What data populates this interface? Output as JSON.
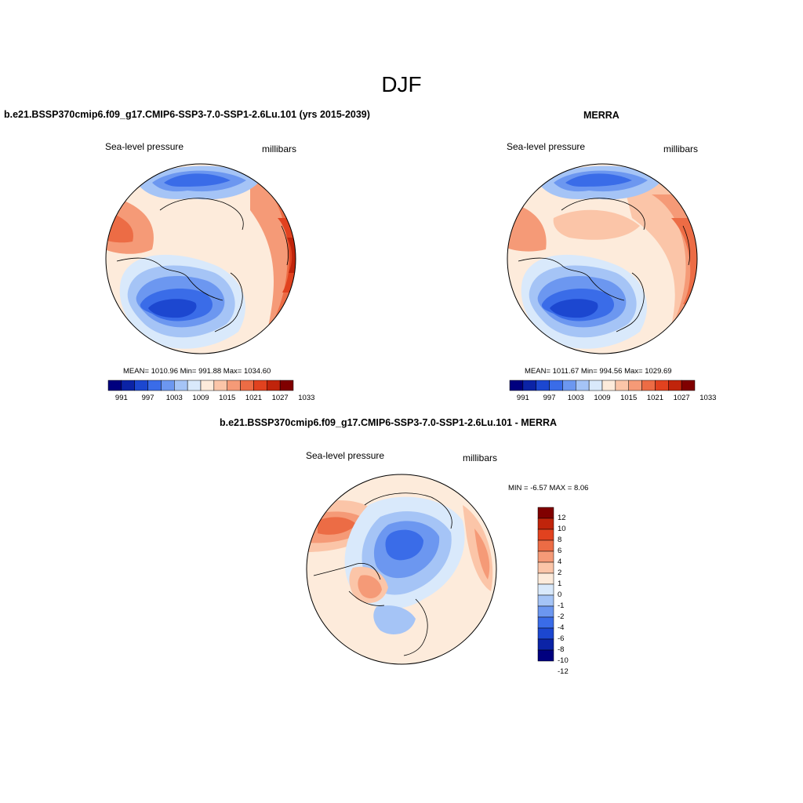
{
  "page": {
    "title": "DJF"
  },
  "colors": {
    "scale": [
      "#00007f",
      "#0b23a6",
      "#1c47d0",
      "#3a6ce8",
      "#6c97f0",
      "#a5c4f6",
      "#d9e9fb",
      "#fdebdb",
      "#fbc5a8",
      "#f59a77",
      "#ec6c45",
      "#e1421f",
      "#c0240b",
      "#800000"
    ],
    "diff_scale": [
      "#00007f",
      "#0b23a6",
      "#1c47d0",
      "#3a6ce8",
      "#6c97f0",
      "#a5c4f6",
      "#d9e9fb",
      "#fdebdb",
      "#fbc5a8",
      "#f59a77",
      "#ec6c45",
      "#e1421f",
      "#c0240b",
      "#800000"
    ]
  },
  "panels": {
    "model": {
      "title": "b.e21.BSSP370cmip6.f09_g17.CMIP6-SSP3-7.0-SSP1-2.6Lu.101 (yrs 2015-2039)",
      "left_label": "Sea-level pressure",
      "right_label": "millibars",
      "stats": "MEAN= 1010.96  Min= 991.88  Max= 1034.60",
      "colorbar_ticks": [
        "991",
        "997",
        "1003",
        "1009",
        "1015",
        "1021",
        "1027",
        "1033"
      ]
    },
    "obs": {
      "title": "MERRA",
      "left_label": "Sea-level pressure",
      "right_label": "millibars",
      "stats": "MEAN= 1011.67  Min= 994.56  Max= 1029.69",
      "colorbar_ticks": [
        "991",
        "997",
        "1003",
        "1009",
        "1015",
        "1021",
        "1027",
        "1033"
      ]
    },
    "diff": {
      "title": "b.e21.BSSP370cmip6.f09_g17.CMIP6-SSP3-7.0-SSP1-2.6Lu.101 - MERRA",
      "left_label": "Sea-level pressure",
      "right_label": "millibars",
      "stats": "MIN =  -6.57 MAX =   8.06",
      "colorbar_ticks": [
        "12",
        "10",
        "8",
        "6",
        "4",
        "2",
        "1",
        "0",
        "-1",
        "-2",
        "-4",
        "-6",
        "-8",
        "-10",
        "-12"
      ]
    }
  }
}
